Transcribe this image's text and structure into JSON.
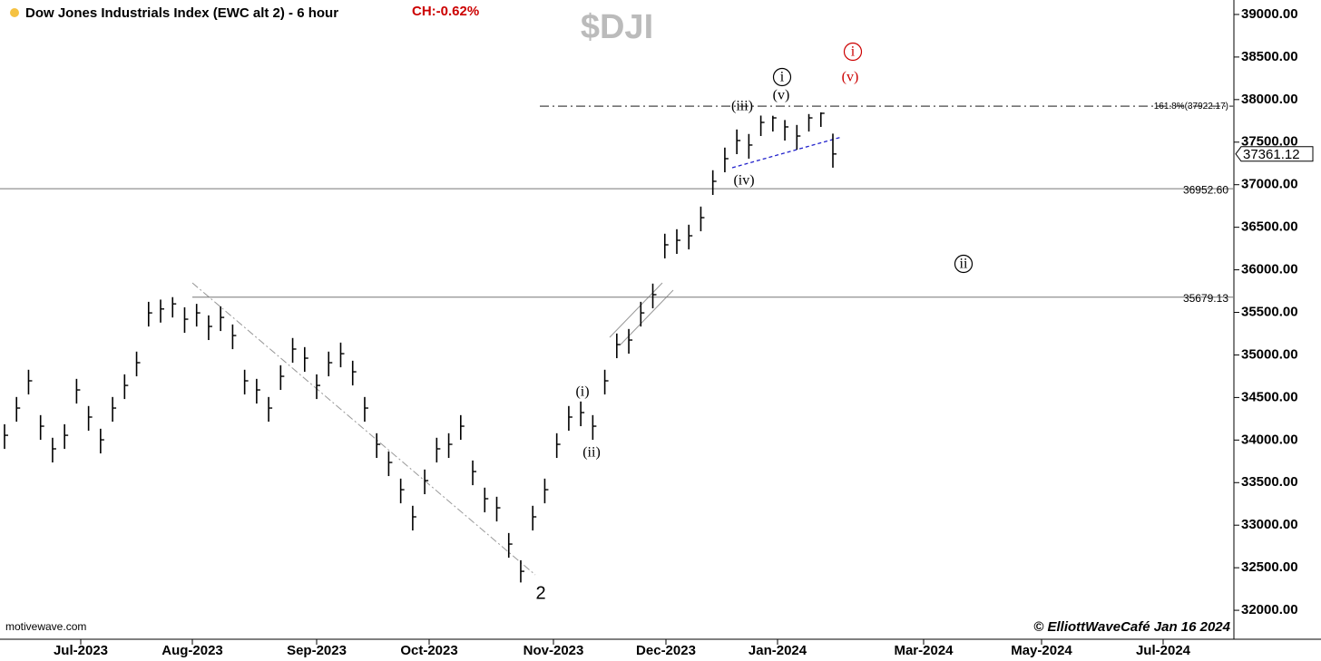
{
  "chart_data": {
    "type": "ohlc",
    "title": "Dow Jones Industrials Index (EWC alt 2) - 6 hour",
    "change": "CH:-0.62%",
    "symbol": "$DJI",
    "source": "motivewave.com",
    "credit": "© ElliottWaveCafé Jan 16 2024",
    "color": "#000000",
    "high": [
      34186,
      34506,
      34826,
      34293,
      34027,
      34186,
      34719,
      34400,
      34133,
      34506,
      34772,
      35039,
      35624,
      35650,
      35679,
      35560,
      35600,
      35465,
      35571,
      35358,
      34826,
      34719,
      34506,
      34879,
      35199,
      35092,
      34772,
      35039,
      35145,
      34932,
      34506,
      34080,
      33867,
      33547,
      33228,
      33654,
      34027,
      34080,
      34293,
      33760,
      33441,
      33334,
      32908,
      32588,
      33228,
      33547,
      34080,
      34400,
      34453,
      34293,
      34826,
      35252,
      35305,
      35624,
      35838,
      36424,
      36477,
      36530,
      36743,
      37170,
      37436,
      37649,
      37596,
      37812,
      37810,
      37760,
      37702,
      37830,
      37850,
      37600
    ],
    "low": [
      33896,
      34216,
      34536,
      34003,
      33737,
      33896,
      34429,
      34110,
      33843,
      34216,
      34482,
      34749,
      35334,
      35380,
      35440,
      35260,
      35334,
      35175,
      35281,
      35068,
      34536,
      34429,
      34216,
      34589,
      34909,
      34802,
      34482,
      34749,
      34855,
      34642,
      34216,
      33790,
      33577,
      33257,
      32938,
      33364,
      33737,
      33790,
      34003,
      33470,
      33151,
      33044,
      32618,
      32327,
      32938,
      33257,
      33790,
      34110,
      34163,
      34003,
      34536,
      34962,
      35015,
      35334,
      35548,
      36134,
      36187,
      36240,
      36453,
      36880,
      37146,
      37359,
      37306,
      37572,
      37625,
      37519,
      37412,
      37625,
      37679,
      37200
    ],
    "close": [
      34056,
      34376,
      34696,
      34163,
      33897,
      34056,
      34589,
      34270,
      34003,
      34376,
      34642,
      34909,
      35494,
      35540,
      35600,
      35420,
      35494,
      35335,
      35441,
      35228,
      34696,
      34589,
      34376,
      34749,
      35069,
      34962,
      34642,
      34909,
      35015,
      34802,
      34376,
      33950,
      33737,
      33417,
      33098,
      33524,
      33897,
      33950,
      34163,
      33630,
      33311,
      33204,
      32778,
      32458,
      33098,
      33417,
      33950,
      34270,
      34323,
      34163,
      34696,
      35122,
      35175,
      35494,
      35708,
      36294,
      36347,
      36400,
      36613,
      37040,
      37306,
      37519,
      37466,
      37732,
      37785,
      37679,
      37572,
      37785,
      37839,
      37361
    ],
    "ylim": [
      31660,
      39170
    ],
    "yticks": [
      {
        "value": 32000,
        "label": "32000.00"
      },
      {
        "value": 32500,
        "label": "32500.00"
      },
      {
        "value": 33000,
        "label": "33000.00"
      },
      {
        "value": 33500,
        "label": "33500.00"
      },
      {
        "value": 34000,
        "label": "34000.00"
      },
      {
        "value": 34500,
        "label": "34500.00"
      },
      {
        "value": 35000,
        "label": "35000.00"
      },
      {
        "value": 35500,
        "label": "35500.00"
      },
      {
        "value": 36000,
        "label": "36000.00"
      },
      {
        "value": 36500,
        "label": "36500.00"
      },
      {
        "value": 37000,
        "label": "37000.00"
      },
      {
        "value": 37500,
        "label": "37500.00"
      },
      {
        "value": 38000,
        "label": "38000.00"
      },
      {
        "value": 38500,
        "label": "38500.00"
      },
      {
        "value": 39000,
        "label": "39000.00"
      }
    ],
    "xticks": [
      "Jul-2023",
      "Aug-2023",
      "Sep-2023",
      "Oct-2023",
      "Nov-2023",
      "Dec-2023",
      "Jan-2024",
      "Mar-2024",
      "May-2024",
      "Jul-2024"
    ],
    "levels": [
      {
        "value": 37922.17,
        "label": "161.8%(37922.17)"
      },
      {
        "value": 36952.6,
        "label": "36952.60"
      },
      {
        "value": 35679.13,
        "label": "35679.13"
      }
    ],
    "last_price": {
      "value": 37361.12,
      "label": "37361.12"
    },
    "waves": [
      {
        "label": "(i)",
        "color": "#000000"
      },
      {
        "label": "(ii)",
        "color": "#000000"
      },
      {
        "label": "(iii)",
        "color": "#000000"
      },
      {
        "label": "(iv)",
        "color": "#000000"
      },
      {
        "label": "(v)",
        "color": "#000000"
      },
      {
        "label": "i",
        "color": "#000000",
        "circled": true
      },
      {
        "label": "i",
        "color": "#cc0000",
        "circled": true
      },
      {
        "label": "(v)",
        "color": "#cc0000"
      },
      {
        "label": "ii",
        "color": "#000000",
        "circled": true
      },
      {
        "label": "2",
        "color": "#000000"
      }
    ]
  }
}
